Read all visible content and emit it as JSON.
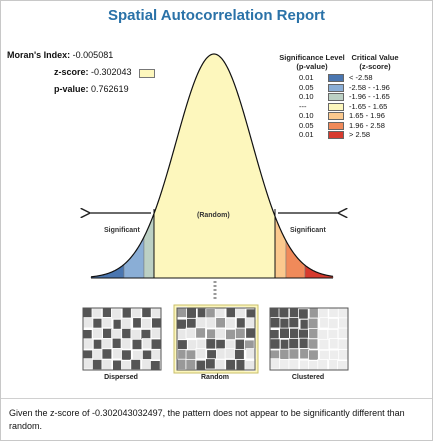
{
  "title": "Spatial Autocorrelation Report",
  "stats": {
    "morans_label": "Moran's Index:",
    "morans_value": "-0.005081",
    "z_label": "z-score:",
    "z_value": "-0.302043",
    "p_label": "p-value:",
    "p_value": "0.762619"
  },
  "legend": {
    "sig_header_1": "Significance Level",
    "sig_header_2": "(p-value)",
    "crit_header_1": "Critical Value",
    "crit_header_2": "(z-score)",
    "rows": [
      {
        "p": "0.01",
        "z": "< -2.58",
        "color": "#4a76b0"
      },
      {
        "p": "0.05",
        "z": "-2.58 - -1.96",
        "color": "#8aaed6"
      },
      {
        "p": "0.10",
        "z": "-1.96 - -1.65",
        "color": "#bcd0c4"
      },
      {
        "p": "---",
        "z": "-1.65 - 1.65",
        "color": "#fdf7bd"
      },
      {
        "p": "0.10",
        "z": "1.65 - 1.96",
        "color": "#fbc98e"
      },
      {
        "p": "0.05",
        "z": "1.96 - 2.58",
        "color": "#f08a5a"
      },
      {
        "p": "0.01",
        "z": "> 2.58",
        "color": "#d73a2e"
      }
    ]
  },
  "curve": {
    "center_label": "(Random)",
    "left_label": "Significant",
    "right_label": "Significant"
  },
  "maps": {
    "dispersed": "Dispersed",
    "random": "Random",
    "clustered": "Clustered"
  },
  "conclusion": "Given the z-score of -0.302043032497, the pattern does not appear to be significantly different than random."
}
